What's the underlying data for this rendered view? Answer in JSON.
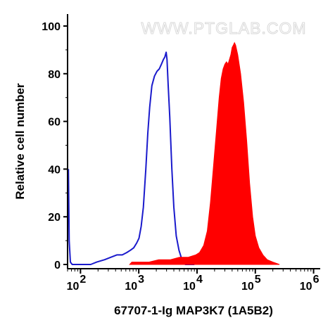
{
  "chart_data": {
    "type": "area",
    "xlabel": "67707-1-Ig MAP3K7 (1A5B2)",
    "ylabel": "Relative cell number",
    "watermark": "WWW.PTGLAB.COM",
    "x_scale": "log",
    "xlim": [
      60,
      1300000
    ],
    "ylim": [
      0,
      100
    ],
    "y_ticks": [
      0,
      20,
      40,
      60,
      80,
      100
    ],
    "x_ticks": [
      {
        "value": 100,
        "base": "10",
        "exp": "2"
      },
      {
        "value": 1000,
        "base": "10",
        "exp": "3"
      },
      {
        "value": 10000,
        "base": "10",
        "exp": "4"
      },
      {
        "value": 100000,
        "base": "10",
        "exp": "5"
      },
      {
        "value": 1000000,
        "base": "10",
        "exp": "6"
      }
    ],
    "grid": false,
    "series": [
      {
        "style": "outline",
        "color": "#1a1acc",
        "points": [
          [
            62,
            40
          ],
          [
            64,
            10
          ],
          [
            67,
            1
          ],
          [
            72,
            0
          ],
          [
            150,
            0
          ],
          [
            190,
            1
          ],
          [
            260,
            2
          ],
          [
            330,
            3
          ],
          [
            420,
            4
          ],
          [
            520,
            4
          ],
          [
            620,
            5
          ],
          [
            720,
            6
          ],
          [
            820,
            7
          ],
          [
            920,
            9
          ],
          [
            1010,
            11
          ],
          [
            1100,
            16
          ],
          [
            1200,
            24
          ],
          [
            1320,
            40
          ],
          [
            1430,
            55
          ],
          [
            1540,
            66
          ],
          [
            1680,
            75
          ],
          [
            1860,
            79
          ],
          [
            2050,
            81
          ],
          [
            2250,
            82
          ],
          [
            2450,
            84
          ],
          [
            2650,
            86
          ],
          [
            2800,
            87
          ],
          [
            2950,
            89
          ],
          [
            3050,
            86
          ],
          [
            3200,
            75
          ],
          [
            3400,
            62
          ],
          [
            3700,
            40
          ],
          [
            4000,
            24
          ],
          [
            4400,
            12
          ],
          [
            4900,
            6
          ],
          [
            5500,
            2
          ],
          [
            6300,
            0
          ],
          [
            9000,
            0
          ]
        ]
      },
      {
        "style": "filled",
        "color": "#ff0000",
        "points": [
          [
            700,
            0
          ],
          [
            760,
            1
          ],
          [
            1000,
            1
          ],
          [
            1500,
            1
          ],
          [
            2200,
            2
          ],
          [
            3500,
            2
          ],
          [
            5000,
            3
          ],
          [
            7000,
            3
          ],
          [
            9500,
            4
          ],
          [
            11000,
            5
          ],
          [
            13000,
            8
          ],
          [
            15000,
            14
          ],
          [
            17000,
            26
          ],
          [
            19000,
            40
          ],
          [
            21500,
            56
          ],
          [
            24000,
            70
          ],
          [
            26000,
            78
          ],
          [
            28000,
            82
          ],
          [
            30000,
            84
          ],
          [
            32000,
            85
          ],
          [
            34000,
            84
          ],
          [
            36000,
            86
          ],
          [
            38000,
            88
          ],
          [
            40000,
            91
          ],
          [
            42000,
            92
          ],
          [
            44000,
            93
          ],
          [
            46000,
            92
          ],
          [
            50000,
            88
          ],
          [
            56000,
            80
          ],
          [
            63000,
            68
          ],
          [
            71000,
            52
          ],
          [
            80000,
            34
          ],
          [
            90000,
            20
          ],
          [
            100000,
            12
          ],
          [
            115000,
            7
          ],
          [
            135000,
            4
          ],
          [
            160000,
            2
          ],
          [
            200000,
            1
          ],
          [
            260000,
            0
          ]
        ]
      }
    ]
  }
}
